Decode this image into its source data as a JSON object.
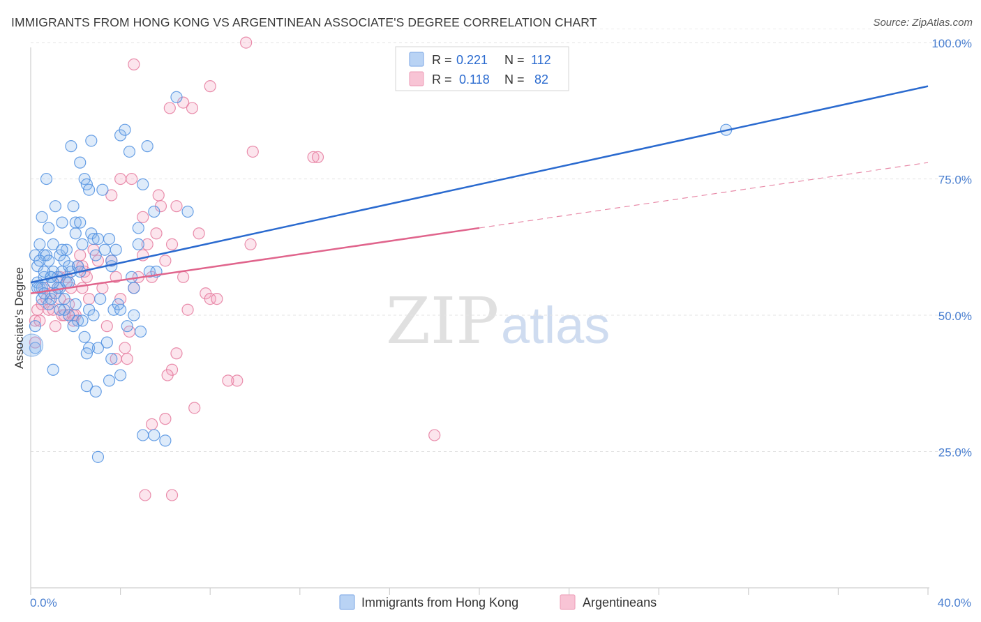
{
  "title": "IMMIGRANTS FROM HONG KONG VS ARGENTINEAN ASSOCIATE'S DEGREE CORRELATION CHART",
  "source": "Source: ZipAtlas.com",
  "watermark": {
    "zip": "ZIP",
    "atlas": "atlas"
  },
  "colors": {
    "blue": "#5b9be6",
    "blue_line": "#2a6acf",
    "pink": "#ef88a8",
    "pink_line": "#e0648c",
    "axis_text": "#4a7fd0"
  },
  "legend": {
    "rows": [
      {
        "r_label": "R =",
        "r_value": "0.221",
        "n_label": "N =",
        "n_value": "112"
      },
      {
        "r_label": "R =",
        "r_value": "0.118",
        "n_label": "N =",
        "n_value": "82"
      }
    ]
  },
  "bottom_legend": {
    "series1": "Immigrants from Hong Kong",
    "series2": "Argentineans"
  },
  "chart_data": {
    "type": "scatter",
    "xlabel": "",
    "ylabel": "Associate's Degree",
    "xlim": [
      0,
      40
    ],
    "ylim": [
      0,
      105
    ],
    "x_tick_labels": [
      "0.0%",
      "40.0%"
    ],
    "y_tick_labels": [
      "100.0%",
      "75.0%",
      "50.0%",
      "25.0%"
    ],
    "y_tick_values": [
      100,
      75,
      50,
      25
    ],
    "series": [
      {
        "name": "Immigrants from Hong Kong",
        "color": "#5b9be6",
        "trend": {
          "x": [
            0,
            40
          ],
          "y": [
            56,
            92
          ]
        },
        "points": [
          [
            0.2,
            61
          ],
          [
            0.3,
            59
          ],
          [
            0.3,
            56
          ],
          [
            0.4,
            55
          ],
          [
            0.5,
            55
          ],
          [
            0.5,
            53
          ],
          [
            0.6,
            57
          ],
          [
            0.6,
            61
          ],
          [
            0.7,
            61
          ],
          [
            0.8,
            60
          ],
          [
            0.9,
            57
          ],
          [
            0.9,
            53
          ],
          [
            1.0,
            58
          ],
          [
            1.0,
            63
          ],
          [
            1.1,
            70
          ],
          [
            1.2,
            57
          ],
          [
            1.3,
            61
          ],
          [
            1.3,
            55
          ],
          [
            1.4,
            58
          ],
          [
            1.5,
            60
          ],
          [
            1.6,
            56
          ],
          [
            1.7,
            56
          ],
          [
            1.7,
            59
          ],
          [
            1.8,
            58
          ],
          [
            1.9,
            70
          ],
          [
            2.0,
            65
          ],
          [
            2.0,
            67
          ],
          [
            2.1,
            59
          ],
          [
            2.2,
            67
          ],
          [
            2.3,
            63
          ],
          [
            2.4,
            75
          ],
          [
            2.5,
            74
          ],
          [
            2.6,
            73
          ],
          [
            2.7,
            65
          ],
          [
            2.8,
            64
          ],
          [
            2.9,
            61
          ],
          [
            3.0,
            64
          ],
          [
            3.2,
            73
          ],
          [
            3.3,
            62
          ],
          [
            3.5,
            64
          ],
          [
            3.6,
            59
          ],
          [
            3.8,
            62
          ],
          [
            4.0,
            83
          ],
          [
            4.2,
            84
          ],
          [
            4.4,
            80
          ],
          [
            4.5,
            57
          ],
          [
            4.6,
            55
          ],
          [
            4.8,
            66
          ],
          [
            5.0,
            74
          ],
          [
            5.2,
            81
          ],
          [
            5.3,
            58
          ],
          [
            5.5,
            69
          ],
          [
            6.5,
            90
          ],
          [
            7.0,
            69
          ],
          [
            0.8,
            66
          ],
          [
            0.7,
            75
          ],
          [
            0.5,
            68
          ],
          [
            1.4,
            67
          ],
          [
            1.8,
            81
          ],
          [
            2.2,
            78
          ],
          [
            2.7,
            82
          ],
          [
            3.6,
            60
          ],
          [
            1.2,
            55
          ],
          [
            0.4,
            63
          ],
          [
            1.7,
            50
          ],
          [
            1.5,
            51
          ],
          [
            2.1,
            49
          ],
          [
            2.3,
            49
          ],
          [
            2.6,
            51
          ],
          [
            2.8,
            50
          ],
          [
            3.1,
            53
          ],
          [
            3.4,
            45
          ],
          [
            3.7,
            51
          ],
          [
            4.0,
            51
          ],
          [
            4.3,
            48
          ],
          [
            4.6,
            50
          ],
          [
            1.0,
            56
          ],
          [
            1.9,
            48
          ],
          [
            2.4,
            46
          ],
          [
            2.5,
            37
          ],
          [
            2.6,
            44
          ],
          [
            2.5,
            43
          ],
          [
            3.0,
            44
          ],
          [
            2.9,
            36
          ],
          [
            3.5,
            38
          ],
          [
            3.6,
            42
          ],
          [
            4.0,
            39
          ],
          [
            4.9,
            47
          ],
          [
            5.5,
            28
          ],
          [
            3.0,
            24
          ],
          [
            5.0,
            28
          ],
          [
            6.0,
            27
          ],
          [
            1.0,
            40
          ],
          [
            1.5,
            53
          ],
          [
            0.3,
            55
          ],
          [
            0.4,
            60
          ],
          [
            0.6,
            54
          ],
          [
            0.9,
            57
          ],
          [
            1.3,
            51
          ],
          [
            2.0,
            52
          ],
          [
            4.8,
            63
          ],
          [
            3.9,
            52
          ],
          [
            5.6,
            58
          ],
          [
            31.0,
            84
          ],
          [
            0.2,
            48
          ],
          [
            0.8,
            52
          ],
          [
            1.1,
            54
          ],
          [
            1.6,
            62
          ],
          [
            2.2,
            58
          ],
          [
            0.6,
            58
          ],
          [
            1.4,
            62
          ],
          [
            0.2,
            44
          ]
        ]
      },
      {
        "name": "Argentineans",
        "color": "#ef88a8",
        "trend": {
          "x": [
            0,
            20
          ],
          "y": [
            54,
            66
          ]
        },
        "trend_extension": {
          "x": [
            20,
            40
          ],
          "y": [
            66,
            78
          ]
        },
        "points": [
          [
            0.2,
            49
          ],
          [
            0.3,
            51
          ],
          [
            0.4,
            49
          ],
          [
            0.5,
            52
          ],
          [
            0.6,
            55
          ],
          [
            0.7,
            53
          ],
          [
            0.8,
            51
          ],
          [
            0.9,
            54
          ],
          [
            1.0,
            51
          ],
          [
            1.1,
            48
          ],
          [
            1.2,
            55
          ],
          [
            1.3,
            53
          ],
          [
            1.4,
            50
          ],
          [
            1.5,
            50
          ],
          [
            1.6,
            57
          ],
          [
            1.7,
            52
          ],
          [
            1.8,
            55
          ],
          [
            1.9,
            50
          ],
          [
            2.0,
            50
          ],
          [
            2.1,
            59
          ],
          [
            2.2,
            61
          ],
          [
            2.3,
            55
          ],
          [
            2.4,
            58
          ],
          [
            2.5,
            57
          ],
          [
            2.6,
            53
          ],
          [
            2.8,
            62
          ],
          [
            3.0,
            60
          ],
          [
            3.2,
            55
          ],
          [
            3.4,
            48
          ],
          [
            3.6,
            60
          ],
          [
            3.8,
            57
          ],
          [
            4.0,
            53
          ],
          [
            4.2,
            44
          ],
          [
            4.4,
            47
          ],
          [
            4.6,
            55
          ],
          [
            4.8,
            57
          ],
          [
            5.0,
            61
          ],
          [
            5.2,
            63
          ],
          [
            5.4,
            57
          ],
          [
            5.6,
            65
          ],
          [
            5.8,
            70
          ],
          [
            6.0,
            60
          ],
          [
            6.3,
            63
          ],
          [
            6.5,
            70
          ],
          [
            6.8,
            57
          ],
          [
            7.0,
            51
          ],
          [
            7.5,
            65
          ],
          [
            7.8,
            54
          ],
          [
            8.0,
            53
          ],
          [
            8.3,
            53
          ],
          [
            8.8,
            38
          ],
          [
            9.2,
            38
          ],
          [
            9.8,
            63
          ],
          [
            4.6,
            96
          ],
          [
            6.2,
            88
          ],
          [
            6.8,
            89
          ],
          [
            7.2,
            88
          ],
          [
            8.0,
            92
          ],
          [
            9.6,
            100
          ],
          [
            9.9,
            80
          ],
          [
            12.6,
            79
          ],
          [
            12.8,
            79
          ],
          [
            4.0,
            75
          ],
          [
            5.0,
            68
          ],
          [
            4.5,
            75
          ],
          [
            3.6,
            72
          ],
          [
            5.7,
            72
          ],
          [
            6.3,
            40
          ],
          [
            6.5,
            43
          ],
          [
            7.3,
            33
          ],
          [
            6.0,
            31
          ],
          [
            5.4,
            30
          ],
          [
            5.1,
            17
          ],
          [
            6.3,
            17
          ],
          [
            3.8,
            42
          ],
          [
            4.3,
            42
          ],
          [
            6.1,
            39
          ],
          [
            18.0,
            28
          ],
          [
            2.3,
            59
          ],
          [
            1.9,
            49
          ],
          [
            1.3,
            57
          ],
          [
            0.2,
            45
          ]
        ]
      }
    ]
  }
}
